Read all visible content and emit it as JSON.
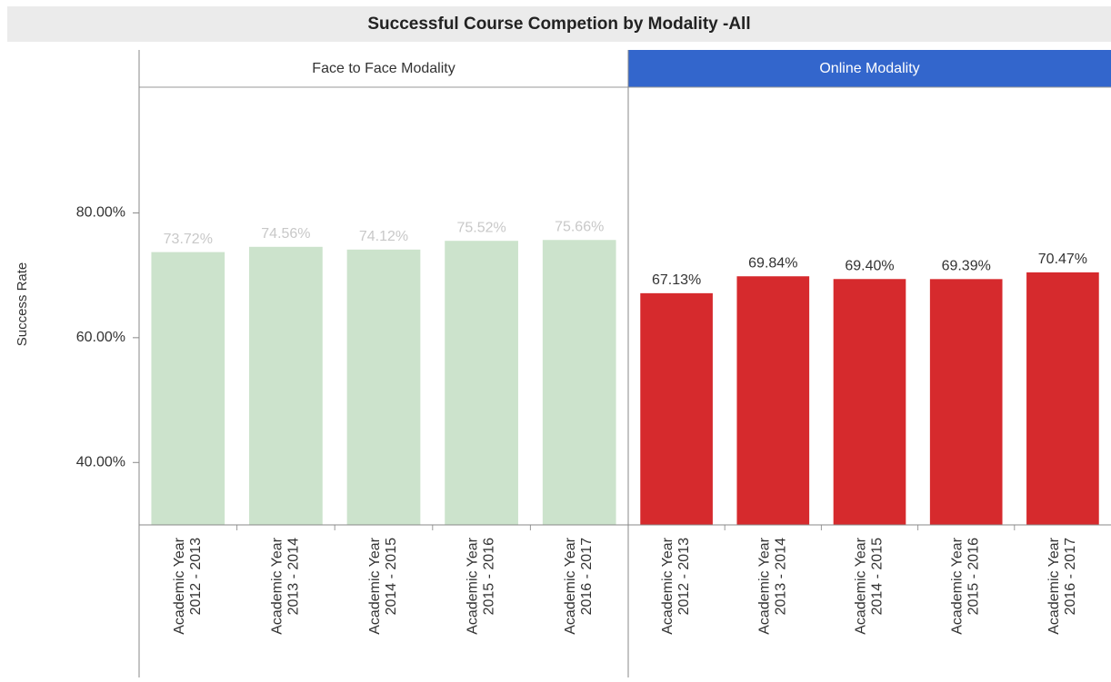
{
  "chart_data": {
    "type": "bar",
    "title": "Successful Course Competion by Modality -All",
    "y_label": "Success Rate",
    "categories": [
      "Academic Year 2012 - 2013",
      "Academic Year 2013 - 2014",
      "Academic Year 2014 - 2015",
      "Academic Year 2015 - 2016",
      "Academic Year 2016 - 2017"
    ],
    "series": [
      {
        "name": "Face to Face Modality",
        "color": "#cce3cc",
        "label_color": "#c8c8c8",
        "values": [
          73.72,
          74.56,
          74.12,
          75.52,
          75.66
        ],
        "value_labels": [
          "73.72%",
          "74.56%",
          "74.12%",
          "75.52%",
          "75.66%"
        ]
      },
      {
        "name": "Online Modality",
        "color": "#d62a2d",
        "label_color": "#333333",
        "values": [
          67.13,
          69.84,
          69.4,
          69.39,
          70.47
        ],
        "value_labels": [
          "67.13%",
          "69.84%",
          "69.40%",
          "69.39%",
          "70.47%"
        ]
      }
    ],
    "ylim": [
      30,
      100
    ],
    "yticks": [
      {
        "value": 40,
        "label": "40.00%"
      },
      {
        "value": 60,
        "label": "60.00%"
      },
      {
        "value": 80,
        "label": "80.00%"
      }
    ]
  }
}
